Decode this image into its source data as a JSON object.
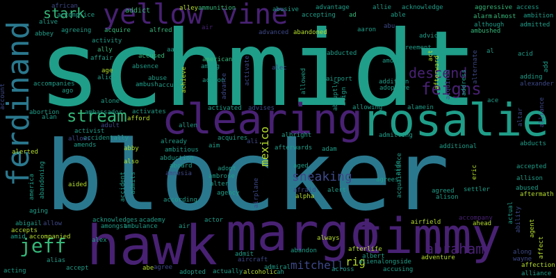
{
  "palette": {
    "background": "#000000",
    "teal": "#1f9e89",
    "blue": "#2a788e",
    "green": "#35b779",
    "lime": "#b5de2b",
    "purple": "#482173",
    "violet": "#3e4989"
  },
  "words": [
    {
      "id": "schmidt",
      "text": "schmidt",
      "c": "teal"
    },
    {
      "id": "blocker",
      "text": "blocker",
      "c": "blue"
    },
    {
      "id": "hawk",
      "text": "hawk",
      "c": "purple"
    },
    {
      "id": "margo",
      "text": "margo",
      "c": "purple"
    },
    {
      "id": "timmy",
      "text": "timmy",
      "c": "purple"
    },
    {
      "id": "rosalie",
      "text": "rosalie",
      "c": "teal"
    },
    {
      "id": "clearing",
      "text": "clearing",
      "c": "purple"
    },
    {
      "id": "ferdinand",
      "text": "ferdinand",
      "c": "blue"
    },
    {
      "id": "yellow",
      "text": "yellow",
      "c": "purple"
    },
    {
      "id": "vine",
      "text": "vine",
      "c": "purple"
    },
    {
      "id": "stark",
      "text": "stark",
      "c": "green"
    },
    {
      "id": "stream",
      "text": "stream",
      "c": "green"
    },
    {
      "id": "jeff",
      "text": "jeff",
      "c": "green"
    },
    {
      "id": "descend",
      "text": "descend",
      "c": "purple"
    },
    {
      "id": "feigns",
      "text": "feigns",
      "c": "purple"
    },
    {
      "id": "abraham",
      "text": "abraham",
      "c": "purple"
    },
    {
      "id": "sneaking",
      "text": "sneaking",
      "c": "violet"
    },
    {
      "id": "mitchell",
      "text": "mitchell",
      "c": "violet"
    },
    {
      "id": "rig",
      "text": "rig",
      "c": "lime"
    },
    {
      "id": "mexico",
      "text": "mexico",
      "c": "lime"
    },
    {
      "id": "african",
      "text": "african",
      "c": "violet"
    },
    {
      "id": "accomplice",
      "text": "accomplice",
      "c": "teal"
    },
    {
      "id": "addict",
      "text": "addict",
      "c": "green"
    },
    {
      "id": "alley",
      "text": "alley",
      "c": "lime"
    },
    {
      "id": "ammunition",
      "text": "ammunition",
      "c": "green"
    },
    {
      "id": "abusive",
      "text": "abusive",
      "c": "teal"
    },
    {
      "id": "advantage",
      "text": "advantage",
      "c": "teal"
    },
    {
      "id": "allie",
      "text": "allie",
      "c": "teal"
    },
    {
      "id": "acknowledge",
      "text": "acknowledge",
      "c": "teal"
    },
    {
      "id": "aggressive",
      "text": "aggressive",
      "c": "green"
    },
    {
      "id": "access",
      "text": "access",
      "c": "teal"
    },
    {
      "id": "alarm",
      "text": "alarm",
      "c": "green"
    },
    {
      "id": "almost",
      "text": "almost",
      "c": "green"
    },
    {
      "id": "ambition",
      "text": "ambition",
      "c": "teal"
    },
    {
      "id": "admitted",
      "text": "admitted",
      "c": "teal"
    },
    {
      "id": "alive",
      "text": "alive",
      "c": "teal"
    },
    {
      "id": "accepting",
      "text": "accepting",
      "c": "teal"
    },
    {
      "id": "ad",
      "text": "ad",
      "c": "green"
    },
    {
      "id": "able",
      "text": "able",
      "c": "teal"
    },
    {
      "id": "abbey",
      "text": "abbey",
      "c": "teal"
    },
    {
      "id": "agreeing",
      "text": "agreeing",
      "c": "teal"
    },
    {
      "id": "acquire",
      "text": "acquire",
      "c": "green"
    },
    {
      "id": "alfred",
      "text": "alfred",
      "c": "green"
    },
    {
      "id": "air",
      "text": "air",
      "c": "purple"
    },
    {
      "id": "advanced",
      "text": "advanced",
      "c": "violet"
    },
    {
      "id": "abandoned",
      "text": "abandoned",
      "c": "lime"
    },
    {
      "id": "aaron",
      "text": "aaron",
      "c": "teal"
    },
    {
      "id": "abu",
      "text": "abu",
      "c": "violet"
    },
    {
      "id": "advice",
      "text": "advice",
      "c": "teal"
    },
    {
      "id": "although",
      "text": "although",
      "c": "teal"
    },
    {
      "id": "ambushed",
      "text": "ambushed",
      "c": "green"
    },
    {
      "id": "activity",
      "text": "activity",
      "c": "teal"
    },
    {
      "id": "affair",
      "text": "affair",
      "c": "teal"
    },
    {
      "id": "aang",
      "text": "aang",
      "c": "teal"
    },
    {
      "id": "agreement",
      "text": "agreement",
      "c": "teal"
    },
    {
      "id": "ally",
      "text": "ally",
      "c": "green"
    },
    {
      "id": "accused",
      "text": "accused",
      "c": "green"
    },
    {
      "id": "american",
      "text": "american",
      "c": "green"
    },
    {
      "id": "among",
      "text": "among",
      "c": "teal"
    },
    {
      "id": "activate",
      "text": "activate",
      "c": "violet"
    },
    {
      "id": "alec",
      "text": "alec",
      "c": "violet"
    },
    {
      "id": "abducted",
      "text": "abducted",
      "c": "teal"
    },
    {
      "id": "amount",
      "text": "amount",
      "c": "teal"
    },
    {
      "id": "acid",
      "text": "acid",
      "c": "teal"
    },
    {
      "id": "al",
      "text": "al",
      "c": "teal"
    },
    {
      "id": "act",
      "text": "act",
      "c": "lime"
    },
    {
      "id": "age",
      "text": "age",
      "c": "lime"
    },
    {
      "id": "alice",
      "text": "alice",
      "c": "teal"
    },
    {
      "id": "absence",
      "text": "absence",
      "c": "teal"
    },
    {
      "id": "abuse",
      "text": "abuse",
      "c": "teal"
    },
    {
      "id": "ambush",
      "text": "ambush",
      "c": "teal"
    },
    {
      "id": "accuses",
      "text": "accuses",
      "c": "teal"
    },
    {
      "id": "achieve",
      "text": "achieve",
      "c": "lime"
    },
    {
      "id": "action",
      "text": "action",
      "c": "teal"
    },
    {
      "id": "advance",
      "text": "advance",
      "c": "violet"
    },
    {
      "id": "allowed",
      "text": "allowed",
      "c": "teal"
    },
    {
      "id": "airport",
      "text": "airport",
      "c": "teal"
    },
    {
      "id": "abruptly",
      "text": "abruptly",
      "c": "teal"
    },
    {
      "id": "addition",
      "text": "addition",
      "c": "teal"
    },
    {
      "id": "adoptive",
      "text": "adoptive",
      "c": "teal"
    },
    {
      "id": "adding",
      "text": "adding",
      "c": "teal"
    },
    {
      "id": "alexander",
      "text": "alexander",
      "c": "violet"
    },
    {
      "id": "address",
      "text": "address",
      "c": "teal"
    },
    {
      "id": "add",
      "text": "add",
      "c": "teal"
    },
    {
      "id": "account",
      "text": "account",
      "c": "violet"
    },
    {
      "id": "accompanies",
      "text": "accompanies",
      "c": "teal"
    },
    {
      "id": "ago",
      "text": "ago",
      "c": "teal"
    },
    {
      "id": "alone",
      "text": "alone",
      "c": "teal"
    },
    {
      "id": "ace",
      "text": "ace",
      "c": "teal"
    },
    {
      "id": "alliance_v",
      "text": "alliance",
      "c": "violet"
    },
    {
      "id": "abortion",
      "text": "abortion",
      "c": "teal"
    },
    {
      "id": "alan",
      "text": "alan",
      "c": "teal"
    },
    {
      "id": "ambassador",
      "text": "ambassador",
      "c": "teal"
    },
    {
      "id": "adult",
      "text": "adult",
      "c": "violet"
    },
    {
      "id": "afford",
      "text": "afford",
      "c": "lime"
    },
    {
      "id": "activates",
      "text": "activates",
      "c": "teal"
    },
    {
      "id": "activated",
      "text": "activated",
      "c": "teal"
    },
    {
      "id": "advises",
      "text": "advises",
      "c": "violet"
    },
    {
      "id": "allowing",
      "text": "allowing",
      "c": "teal"
    },
    {
      "id": "alamein",
      "text": "alamein",
      "c": "teal"
    },
    {
      "id": "altar",
      "text": "altar",
      "c": "violet"
    },
    {
      "id": "activist",
      "text": "activist",
      "c": "teal"
    },
    {
      "id": "allen",
      "text": "allen",
      "c": "teal"
    },
    {
      "id": "accidentally",
      "text": "accidentally",
      "c": "teal"
    },
    {
      "id": "already",
      "text": "already",
      "c": "teal"
    },
    {
      "id": "acquires",
      "text": "acquires",
      "c": "teal"
    },
    {
      "id": "ali",
      "text": "ali",
      "c": "violet"
    },
    {
      "id": "albright",
      "text": "albright",
      "c": "teal"
    },
    {
      "id": "afterwards",
      "text": "afterwards",
      "c": "teal"
    },
    {
      "id": "adam",
      "text": "adam",
      "c": "teal"
    },
    {
      "id": "admitting",
      "text": "admitting",
      "c": "teal"
    },
    {
      "id": "additional",
      "text": "additional",
      "c": "teal"
    },
    {
      "id": "abducts",
      "text": "abducts",
      "c": "teal"
    },
    {
      "id": "alerted",
      "text": "alerted",
      "c": "lime"
    },
    {
      "id": "allows",
      "text": "allows",
      "c": "violet"
    },
    {
      "id": "amends",
      "text": "amends",
      "c": "teal"
    },
    {
      "id": "abby",
      "text": "abby",
      "c": "lime"
    },
    {
      "id": "ambitious",
      "text": "ambitious",
      "c": "teal"
    },
    {
      "id": "aim",
      "text": "aim",
      "c": "teal"
    },
    {
      "id": "abduction",
      "text": "abduction",
      "c": "teal"
    },
    {
      "id": "also",
      "text": "also",
      "c": "lime"
    },
    {
      "id": "aboard",
      "text": "aboard",
      "c": "teal"
    },
    {
      "id": "amnesia",
      "text": "amnesia",
      "c": "violet"
    },
    {
      "id": "adopt",
      "text": "adopt",
      "c": "teal"
    },
    {
      "id": "ambrose",
      "text": "ambrose",
      "c": "teal"
    },
    {
      "id": "alter",
      "text": "alter",
      "c": "teal"
    },
    {
      "id": "aged",
      "text": "aged",
      "c": "teal"
    },
    {
      "id": "acquaintance",
      "text": "acquaintance",
      "c": "teal"
    },
    {
      "id": "aide",
      "text": "aide",
      "c": "teal"
    },
    {
      "id": "eric",
      "text": "eric",
      "c": "lime"
    },
    {
      "id": "accepted",
      "text": "accepted",
      "c": "teal"
    },
    {
      "id": "allison",
      "text": "allison",
      "c": "teal"
    },
    {
      "id": "abused",
      "text": "abused",
      "c": "teal"
    },
    {
      "id": "aftermath",
      "text": "aftermath",
      "c": "lime"
    },
    {
      "id": "abandoning",
      "text": "abandoning",
      "c": "teal"
    },
    {
      "id": "america",
      "text": "america",
      "c": "teal"
    },
    {
      "id": "accident",
      "text": "accident",
      "c": "teal"
    },
    {
      "id": "admits",
      "text": "admits",
      "c": "teal"
    },
    {
      "id": "aided",
      "text": "aided",
      "c": "lime"
    },
    {
      "id": "agency",
      "text": "agency",
      "c": "teal"
    },
    {
      "id": "airplane",
      "text": "airplane",
      "c": "violet"
    },
    {
      "id": "afraid",
      "text": "afraid",
      "c": "violet"
    },
    {
      "id": "alert",
      "text": "alert",
      "c": "teal"
    },
    {
      "id": "alpha",
      "text": "alpha",
      "c": "lime"
    },
    {
      "id": "agrees",
      "text": "agrees",
      "c": "teal"
    },
    {
      "id": "agreed",
      "text": "agreed",
      "c": "teal"
    },
    {
      "id": "alison",
      "text": "alison",
      "c": "teal"
    },
    {
      "id": "settler",
      "text": "settler",
      "c": "teal"
    },
    {
      "id": "aging",
      "text": "aging",
      "c": "teal"
    },
    {
      "id": "according",
      "text": "according",
      "c": "teal"
    },
    {
      "id": "actor",
      "text": "actor",
      "c": "teal"
    },
    {
      "id": "airfield",
      "text": "airfield",
      "c": "lime"
    },
    {
      "id": "accompany",
      "text": "accompany",
      "c": "purple"
    },
    {
      "id": "ahead",
      "text": "ahead",
      "c": "lime"
    },
    {
      "id": "actual",
      "text": "actual",
      "c": "teal"
    },
    {
      "id": "ability",
      "text": "ability",
      "c": "violet"
    },
    {
      "id": "agent",
      "text": "agent",
      "c": "lime"
    },
    {
      "id": "abigail",
      "text": "abigail",
      "c": "teal"
    },
    {
      "id": "allow",
      "text": "allow",
      "c": "violet"
    },
    {
      "id": "accepts",
      "text": "accepts",
      "c": "lime"
    },
    {
      "id": "acknowledges",
      "text": "acknowledges",
      "c": "teal"
    },
    {
      "id": "academy",
      "text": "academy",
      "c": "teal"
    },
    {
      "id": "amongst",
      "text": "amongst",
      "c": "teal"
    },
    {
      "id": "ambulance",
      "text": "ambulance",
      "c": "teal"
    },
    {
      "id": "air2",
      "text": "air",
      "c": "teal"
    },
    {
      "id": "amid",
      "text": "amid",
      "c": "teal"
    },
    {
      "id": "accompanied",
      "text": "accompanied",
      "c": "lime"
    },
    {
      "id": "alex",
      "text": "alex",
      "c": "teal"
    },
    {
      "id": "abandon",
      "text": "abandon",
      "c": "teal"
    },
    {
      "id": "always",
      "text": "always",
      "c": "lime"
    },
    {
      "id": "admit",
      "text": "admit",
      "c": "teal"
    },
    {
      "id": "afterlife",
      "text": "afterlife",
      "c": "lime"
    },
    {
      "id": "albert",
      "text": "albert",
      "c": "teal"
    },
    {
      "id": "alienalongside",
      "text": "alienalongside",
      "c": "teal"
    },
    {
      "id": "adventure",
      "text": "adventure",
      "c": "lime"
    },
    {
      "id": "along",
      "text": "along",
      "c": "violet"
    },
    {
      "id": "wayne",
      "text": "wayne",
      "c": "violet"
    },
    {
      "id": "affect",
      "text": "affect",
      "c": "lime"
    },
    {
      "id": "affection",
      "text": "affection",
      "c": "lime"
    },
    {
      "id": "alliance",
      "text": "alliance",
      "c": "teal"
    },
    {
      "id": "alias",
      "text": "alias",
      "c": "teal"
    },
    {
      "id": "acting",
      "text": "acting",
      "c": "teal"
    },
    {
      "id": "accept",
      "text": "accept",
      "c": "teal"
    },
    {
      "id": "abe",
      "text": "abe",
      "c": "lime"
    },
    {
      "id": "agree",
      "text": "agree",
      "c": "violet"
    },
    {
      "id": "adopted",
      "text": "adopted",
      "c": "teal"
    },
    {
      "id": "actually",
      "text": "actually",
      "c": "teal"
    },
    {
      "id": "aircraft",
      "text": "aircraft",
      "c": "violet"
    },
    {
      "id": "admiral",
      "text": "admiral",
      "c": "teal"
    },
    {
      "id": "alcoholic",
      "text": "alcoholic",
      "c": "lime"
    },
    {
      "id": "ah",
      "text": "ah",
      "c": "teal"
    },
    {
      "id": "across",
      "text": "across",
      "c": "teal"
    },
    {
      "id": "accusing",
      "text": "accusing",
      "c": "teal"
    },
    {
      "id": "afterward",
      "text": "afterward",
      "c": "lime"
    },
    {
      "id": "acquired",
      "text": "acquired",
      "c": "violet"
    },
    {
      "id": "align",
      "text": "align",
      "c": "teal"
    },
    {
      "id": "alternate",
      "text": "alternate",
      "c": "violet"
    }
  ]
}
